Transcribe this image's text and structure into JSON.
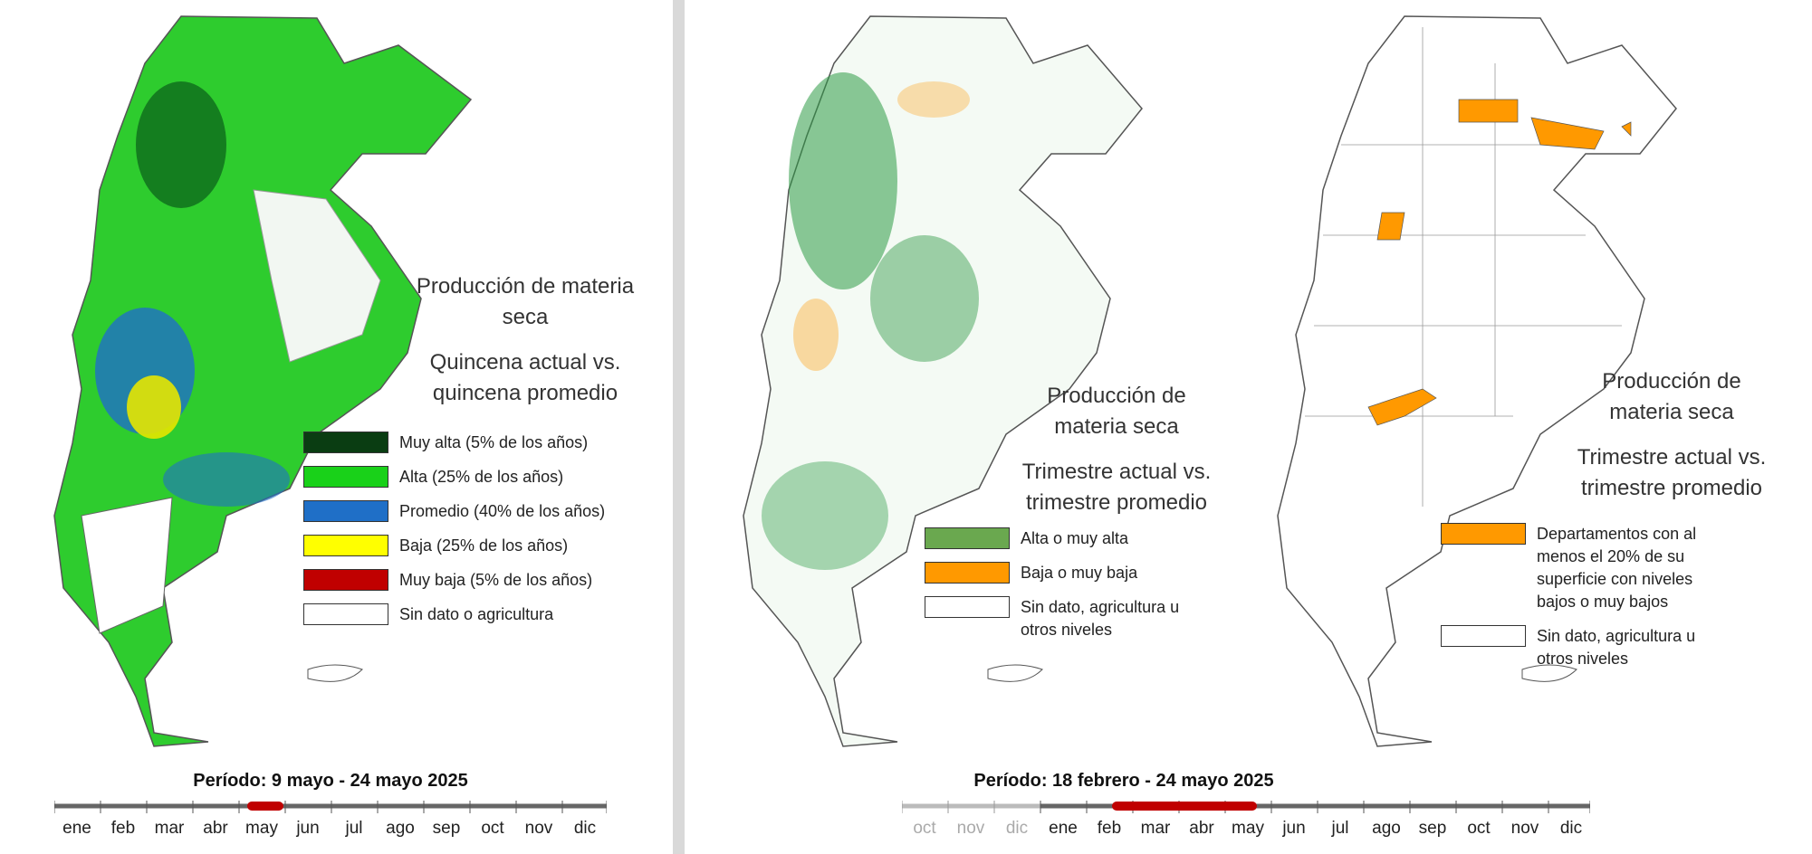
{
  "panels": {
    "left": {
      "title_line1": "Producción de materia",
      "title_line2": "seca",
      "subtitle_line1": "Quincena actual vs.",
      "subtitle_line2": "quincena  promedio",
      "legend": [
        {
          "label": "Muy alta (5% de los años)",
          "color": "#0a3d12"
        },
        {
          "label": "Alta (25% de los años)",
          "color": "#19d119"
        },
        {
          "label": "Promedio (40% de los años)",
          "color": "#1f6fc7"
        },
        {
          "label": "Baja (25% de los años)",
          "color": "#ffff00"
        },
        {
          "label": "Muy baja (5% de los años)",
          "color": "#c00000"
        },
        {
          "label": "Sin dato o agricultura",
          "color": "#ffffff"
        }
      ],
      "period": "Período:  9 mayo  - 24 mayo 2025",
      "months": [
        "ene",
        "feb",
        "mar",
        "abr",
        "may",
        "jun",
        "jul",
        "ago",
        "sep",
        "oct",
        "nov",
        "dic"
      ]
    },
    "middle": {
      "title_line1": "Producción de",
      "title_line2": "materia seca",
      "subtitle_line1": "Trimestre actual vs.",
      "subtitle_line2": "trimestre promedio",
      "legend": [
        {
          "label": "Alta o muy alta",
          "color": "#6aa84f"
        },
        {
          "label": "Baja o muy baja",
          "color": "#ff9900"
        },
        {
          "label": "Sin dato, agricultura u otros niveles",
          "color": "#ffffff"
        }
      ]
    },
    "right": {
      "title_line1": "Producción de",
      "title_line2": "materia seca",
      "subtitle_line1": "Trimestre actual vs.",
      "subtitle_line2": "trimestre promedio",
      "legend": [
        {
          "label": "Departamentos con al menos el 20% de su superficie con niveles bajos o muy bajos",
          "color": "#ff9900"
        },
        {
          "label": "Sin dato, agricultura u otros niveles",
          "color": "#ffffff"
        }
      ]
    },
    "bottom_right": {
      "period": "Período:  18 febrero - 24 mayo 2025",
      "months_prev": [
        "oct",
        "nov",
        "dic"
      ],
      "months": [
        "ene",
        "feb",
        "mar",
        "abr",
        "may",
        "jun",
        "jul",
        "ago",
        "sep",
        "oct",
        "nov",
        "dic"
      ]
    }
  }
}
